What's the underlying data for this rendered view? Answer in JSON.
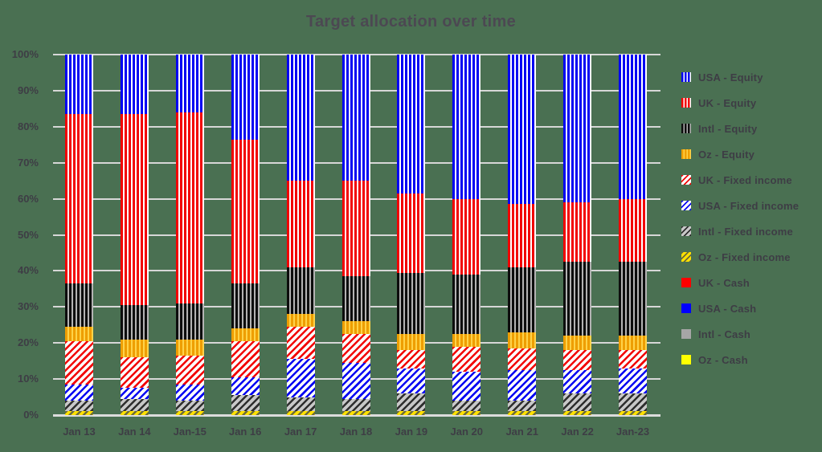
{
  "title": "Target allocation over time",
  "colors": {
    "background": "#4a7052",
    "gridline": "#d7d7d7",
    "text": "#3e3d45",
    "title_text": "#4c4852",
    "usa": "#0202f2",
    "uk": "#f20202",
    "intl": "#1a1a1a",
    "oz_gold": "#ee9e00",
    "oz_yellow": "#ffe100",
    "cash_gray": "#a6a6a6",
    "cash_yellow": "#ffff00"
  },
  "chart_data": {
    "type": "bar",
    "stacked": true,
    "units": "percent",
    "title": "Target allocation over time",
    "xlabel": "",
    "ylabel": "",
    "ylim": [
      0,
      100
    ],
    "grid": true,
    "legend_position": "right",
    "y_ticks": [
      "100%",
      "90%",
      "80%",
      "70%",
      "60%",
      "50%",
      "40%",
      "30%",
      "20%",
      "10%",
      "0%"
    ],
    "categories": [
      "Jan 13",
      "Jan 14",
      "Jan-15",
      "Jan 16",
      "Jan 17",
      "Jan 18",
      "Jan 19",
      "Jan 20",
      "Jan 21",
      "Jan 22",
      "Jan-23"
    ],
    "series": [
      {
        "name": "USA - Equity",
        "pattern": "vertical",
        "fg": "#0202f2",
        "bg": "#ffffff",
        "values": [
          16.5,
          16.5,
          16,
          23.5,
          35,
          35,
          38.5,
          40,
          41.5,
          41,
          40
        ]
      },
      {
        "name": "UK - Equity",
        "pattern": "vertical",
        "fg": "#f20202",
        "bg": "#ffffff",
        "values": [
          47,
          53,
          53,
          40,
          24,
          26.5,
          22,
          21,
          17.5,
          16.5,
          17.5
        ]
      },
      {
        "name": "Intl - Equity",
        "pattern": "vertical",
        "fg": "#0d0d0d",
        "bg": "#b3b3b3",
        "values": [
          12,
          9.5,
          10,
          12.5,
          13,
          12.5,
          17,
          16.5,
          18,
          20.5,
          20.5
        ]
      },
      {
        "name": "Oz - Equity",
        "pattern": "vertical",
        "fg": "#ee9e00",
        "bg": "#ffd34a",
        "values": [
          4,
          5,
          4.5,
          3.5,
          3.5,
          3.5,
          4.5,
          3.5,
          4.5,
          4,
          4
        ]
      },
      {
        "name": "UK - Fixed income",
        "pattern": "diagonal",
        "fg": "#f20202",
        "bg": "#fdfdfd",
        "values": [
          12,
          8.5,
          8,
          10,
          9,
          8,
          5,
          7,
          6,
          5.5,
          5
        ]
      },
      {
        "name": "USA - Fixed income",
        "pattern": "diagonal",
        "fg": "#0202f2",
        "bg": "#fdfdfd",
        "values": [
          4.5,
          3,
          4.5,
          5,
          10.5,
          10,
          7,
          8,
          8.5,
          6.5,
          7
        ]
      },
      {
        "name": "Intl - Fixed income",
        "pattern": "diagonal",
        "fg": "#2e2e2e",
        "bg": "#c8c8c8",
        "values": [
          3,
          3.5,
          3,
          4.5,
          4,
          3.5,
          5,
          3,
          3,
          5,
          5
        ]
      },
      {
        "name": "Oz - Fixed income",
        "pattern": "diagonal",
        "fg": "#6b6b3c",
        "bg": "#ffe100",
        "values": [
          1,
          1,
          1,
          1,
          1,
          1,
          1,
          1,
          1,
          1,
          1
        ]
      },
      {
        "name": "UK - Cash",
        "pattern": "solid",
        "fg": "#fe0000",
        "bg": "#fe0000",
        "values": [
          0,
          0,
          0,
          0,
          0,
          0,
          0,
          0,
          0,
          0,
          0
        ]
      },
      {
        "name": "USA - Cash",
        "pattern": "solid",
        "fg": "#0000fe",
        "bg": "#0000fe",
        "values": [
          0,
          0,
          0,
          0,
          0,
          0,
          0,
          0,
          0,
          0,
          0
        ]
      },
      {
        "name": "Intl - Cash",
        "pattern": "solid",
        "fg": "#a6a6a6",
        "bg": "#a6a6a6",
        "values": [
          0,
          0,
          0,
          0,
          0,
          0,
          0,
          0,
          0,
          0,
          0
        ]
      },
      {
        "name": "Oz - Cash",
        "pattern": "solid",
        "fg": "#ffff00",
        "bg": "#ffff00",
        "values": [
          0,
          0,
          0,
          0,
          0,
          0,
          0,
          0,
          0,
          0,
          0
        ]
      }
    ]
  }
}
